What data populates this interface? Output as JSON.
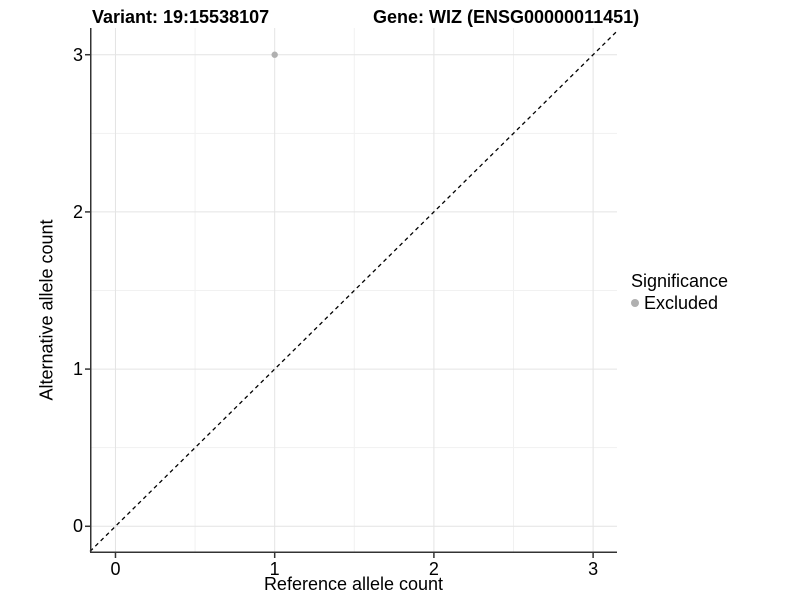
{
  "header": {
    "variant_title": "Variant: 19:15538107",
    "gene_title": "Gene: WIZ (ENSG00000011451)"
  },
  "legend": {
    "title": "Significance",
    "items": [
      {
        "label": "Excluded",
        "color": "#b0b0b0"
      }
    ]
  },
  "chart_data": {
    "type": "scatter",
    "title": "Variant: 19:15538107 — Gene: WIZ (ENSG00000011451)",
    "xlabel": "Reference allele count",
    "ylabel": "Alternative allele count",
    "xlim": [
      -0.16,
      3.15
    ],
    "ylim": [
      -0.17,
      3.17
    ],
    "x_ticks": [
      0,
      1,
      2,
      3
    ],
    "y_ticks": [
      0,
      1,
      2,
      3
    ],
    "minor_x_ticks": [
      0.5,
      1.5,
      2.5
    ],
    "minor_y_ticks": [
      0.5,
      1.5,
      2.5
    ],
    "grid": true,
    "legend_position": "right",
    "identity_line": {
      "slope": 1,
      "intercept": 0,
      "style": "dashed",
      "color": "#000000"
    },
    "series": [
      {
        "name": "Excluded",
        "color": "#b0b0b0",
        "points": [
          {
            "x": 1,
            "y": 3
          }
        ]
      }
    ]
  },
  "colors": {
    "background": "#ffffff",
    "axis_line": "#333333",
    "major_grid": "#e4e4e4",
    "minor_grid": "#f1f1f1",
    "text": "#000000"
  }
}
